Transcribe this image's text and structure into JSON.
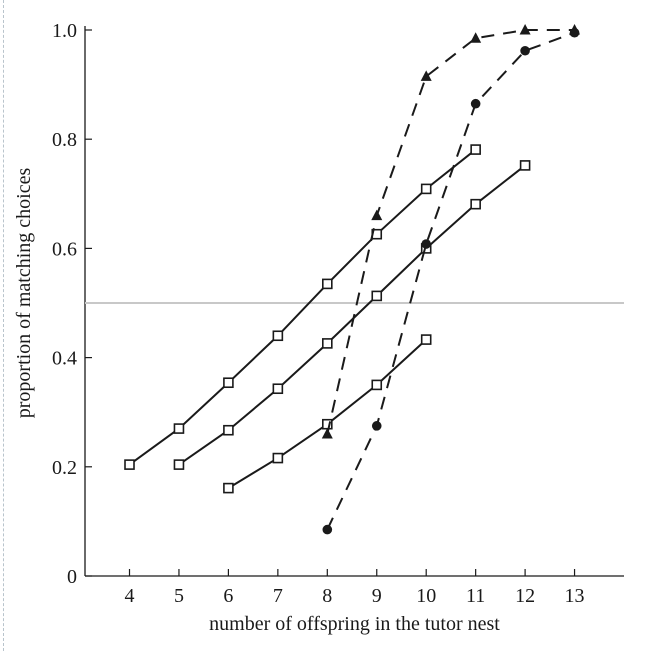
{
  "chart_data": {
    "type": "line",
    "title": "",
    "xlabel": "number of offspring in the tutor nest",
    "ylabel": "proportion of matching choices",
    "xlim": [
      3.1,
      14.0
    ],
    "ylim": [
      0,
      1.0
    ],
    "x_ticks": [
      4,
      5,
      6,
      7,
      8,
      9,
      10,
      11,
      12,
      13
    ],
    "x_tick_labels": [
      "4",
      "5",
      "6",
      "7",
      "8",
      "9",
      "10",
      "11",
      "12",
      "13"
    ],
    "y_ticks": [
      0,
      0.2,
      0.4,
      0.6,
      0.8,
      1.0
    ],
    "y_tick_labels": [
      "0",
      "0.2",
      "0.4",
      "0.6",
      "0.8",
      "1.0"
    ],
    "reference_line": {
      "y": 0.5,
      "color": "#c8c8c8"
    },
    "grid": false,
    "legend": "none",
    "series": [
      {
        "style": "solid",
        "marker": "square-open",
        "x": [
          4,
          5,
          6,
          7,
          8,
          9,
          10,
          11
        ],
        "y": [
          0.204,
          0.27,
          0.354,
          0.44,
          0.535,
          0.626,
          0.709,
          0.781
        ]
      },
      {
        "style": "solid",
        "marker": "square-open",
        "x": [
          5,
          6,
          7,
          8,
          9,
          10,
          11,
          12
        ],
        "y": [
          0.204,
          0.267,
          0.343,
          0.426,
          0.513,
          0.6,
          0.681,
          0.752
        ]
      },
      {
        "style": "solid",
        "marker": "square-open",
        "x": [
          6,
          7,
          8,
          9,
          10
        ],
        "y": [
          0.161,
          0.216,
          0.278,
          0.35,
          0.433
        ]
      },
      {
        "style": "dashed",
        "marker": "triangle-filled",
        "x": [
          8,
          9,
          10,
          11,
          12,
          13
        ],
        "y": [
          0.26,
          0.66,
          0.915,
          0.985,
          1.0,
          1.0
        ]
      },
      {
        "style": "dashed",
        "marker": "circle-filled",
        "x": [
          8,
          9,
          10,
          11,
          12,
          13
        ],
        "y": [
          0.085,
          0.275,
          0.608,
          0.865,
          0.962,
          0.995
        ]
      }
    ]
  }
}
